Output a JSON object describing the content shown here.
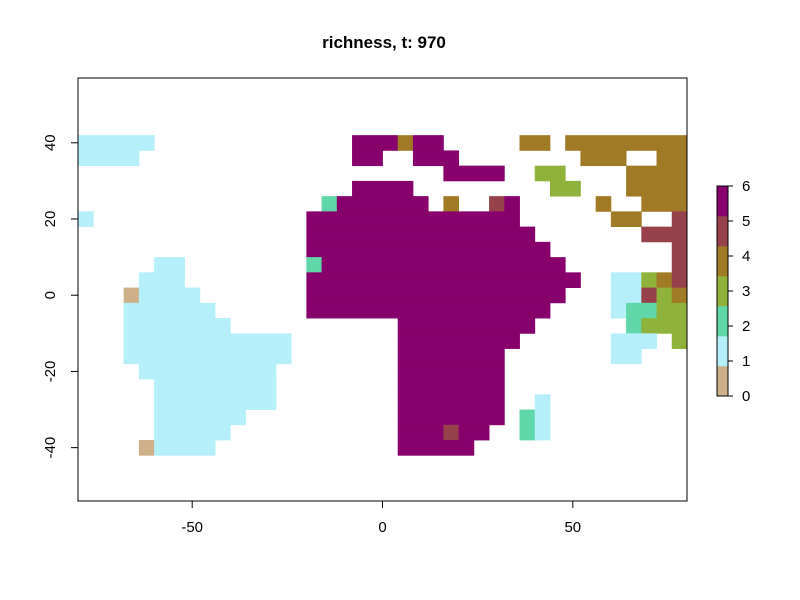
{
  "chart_data": {
    "type": "heatmap",
    "title": "richness, t: 970",
    "xlabel": "",
    "ylabel": "",
    "xlim": [
      -80,
      80
    ],
    "ylim": [
      -54,
      57
    ],
    "cell_size": 4,
    "x_ticks": [
      -50,
      0,
      50
    ],
    "x_tick_labels": [
      "-50",
      "0",
      "50"
    ],
    "y_ticks": [
      -40,
      -20,
      0,
      20,
      40
    ],
    "y_tick_labels": [
      "-40",
      "-20",
      "0",
      "20",
      "40"
    ],
    "legend": {
      "placement": "right",
      "levels": [
        0,
        1,
        2,
        3,
        4,
        5,
        6
      ],
      "labels": [
        "0",
        "1",
        "2",
        "3",
        "4",
        "5",
        "6"
      ],
      "colors": [
        "#CDAF88",
        "#B5EFFA",
        "#5FD7A8",
        "#8FB23A",
        "#A07A25",
        "#97424A",
        "#87006B"
      ]
    },
    "rows": [
      {
        "y": 40,
        "segments": [
          [
            -80,
            -60,
            1
          ],
          [
            -8,
            4,
            6
          ],
          [
            4,
            8,
            4
          ],
          [
            8,
            16,
            6
          ],
          [
            36,
            44,
            4
          ],
          [
            48,
            80,
            4
          ]
        ]
      },
      {
        "y": 36,
        "segments": [
          [
            -80,
            -64,
            1
          ],
          [
            -8,
            0,
            6
          ],
          [
            8,
            20,
            6
          ],
          [
            52,
            64,
            4
          ],
          [
            72,
            80,
            4
          ]
        ]
      },
      {
        "y": 32,
        "segments": [
          [
            16,
            32,
            6
          ],
          [
            40,
            48,
            3
          ],
          [
            64,
            80,
            4
          ]
        ]
      },
      {
        "y": 28,
        "segments": [
          [
            -8,
            8,
            6
          ],
          [
            44,
            52,
            3
          ],
          [
            64,
            80,
            4
          ]
        ]
      },
      {
        "y": 24,
        "segments": [
          [
            -16,
            -12,
            2
          ],
          [
            -12,
            12,
            6
          ],
          [
            16,
            20,
            4
          ],
          [
            28,
            32,
            5
          ],
          [
            32,
            36,
            6
          ],
          [
            56,
            60,
            4
          ],
          [
            68,
            80,
            4
          ]
        ]
      },
      {
        "y": 20,
        "segments": [
          [
            -80,
            -76,
            1
          ],
          [
            -20,
            36,
            6
          ],
          [
            60,
            68,
            4
          ],
          [
            76,
            80,
            5
          ]
        ]
      },
      {
        "y": 16,
        "segments": [
          [
            -20,
            40,
            6
          ],
          [
            68,
            76,
            5
          ],
          [
            76,
            80,
            5
          ]
        ]
      },
      {
        "y": 12,
        "segments": [
          [
            -20,
            44,
            6
          ],
          [
            76,
            80,
            5
          ]
        ]
      },
      {
        "y": 8,
        "segments": [
          [
            -60,
            -52,
            1
          ],
          [
            -20,
            -16,
            2
          ],
          [
            -16,
            48,
            6
          ],
          [
            76,
            80,
            5
          ]
        ]
      },
      {
        "y": 4,
        "segments": [
          [
            -64,
            -52,
            1
          ],
          [
            -20,
            52,
            6
          ],
          [
            60,
            68,
            1
          ],
          [
            68,
            72,
            3
          ],
          [
            72,
            76,
            4
          ],
          [
            76,
            80,
            5
          ]
        ]
      },
      {
        "y": 0,
        "segments": [
          [
            -68,
            -64,
            0
          ],
          [
            -64,
            -48,
            1
          ],
          [
            -20,
            48,
            6
          ],
          [
            60,
            68,
            1
          ],
          [
            68,
            72,
            5
          ],
          [
            72,
            76,
            3
          ],
          [
            76,
            80,
            4
          ]
        ]
      },
      {
        "y": -4,
        "segments": [
          [
            -68,
            -44,
            1
          ],
          [
            -20,
            44,
            6
          ],
          [
            60,
            64,
            1
          ],
          [
            64,
            72,
            2
          ],
          [
            72,
            80,
            3
          ]
        ]
      },
      {
        "y": -8,
        "segments": [
          [
            -68,
            -40,
            1
          ],
          [
            4,
            40,
            6
          ],
          [
            64,
            68,
            2
          ],
          [
            68,
            80,
            3
          ]
        ]
      },
      {
        "y": -12,
        "segments": [
          [
            -68,
            -24,
            1
          ],
          [
            4,
            36,
            6
          ],
          [
            60,
            72,
            1
          ],
          [
            76,
            80,
            3
          ]
        ]
      },
      {
        "y": -16,
        "segments": [
          [
            -68,
            -24,
            1
          ],
          [
            4,
            32,
            6
          ],
          [
            60,
            68,
            1
          ]
        ]
      },
      {
        "y": -20,
        "segments": [
          [
            -64,
            -28,
            1
          ],
          [
            4,
            32,
            6
          ]
        ]
      },
      {
        "y": -24,
        "segments": [
          [
            -60,
            -28,
            1
          ],
          [
            4,
            32,
            6
          ]
        ]
      },
      {
        "y": -28,
        "segments": [
          [
            -60,
            -28,
            1
          ],
          [
            4,
            32,
            6
          ],
          [
            40,
            44,
            1
          ]
        ]
      },
      {
        "y": -32,
        "segments": [
          [
            -60,
            -36,
            1
          ],
          [
            4,
            32,
            6
          ],
          [
            36,
            40,
            2
          ],
          [
            40,
            44,
            1
          ]
        ]
      },
      {
        "y": -36,
        "segments": [
          [
            -60,
            -40,
            1
          ],
          [
            4,
            16,
            6
          ],
          [
            16,
            20,
            5
          ],
          [
            20,
            28,
            6
          ],
          [
            36,
            40,
            2
          ],
          [
            40,
            44,
            1
          ]
        ]
      },
      {
        "y": -40,
        "segments": [
          [
            -64,
            -60,
            0
          ],
          [
            -60,
            -44,
            1
          ],
          [
            4,
            24,
            6
          ]
        ]
      }
    ]
  }
}
